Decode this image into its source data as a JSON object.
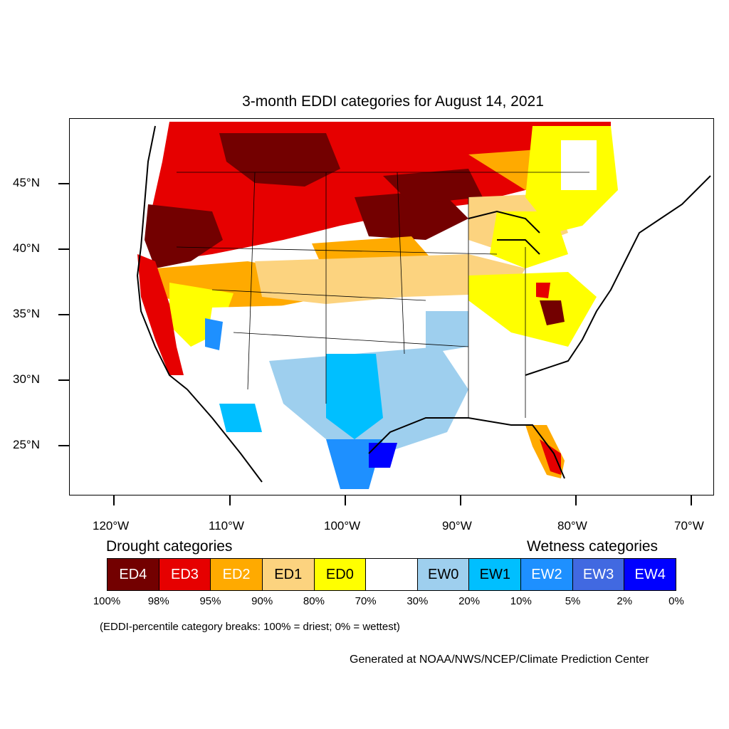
{
  "title": "3-month EDDI categories for August 14, 2021",
  "map": {
    "lat_labels": [
      "45°N",
      "40°N",
      "35°N",
      "30°N",
      "25°N"
    ],
    "lon_labels": [
      "120°W",
      "110°W",
      "100°W",
      "90°W",
      "80°W",
      "70°W"
    ]
  },
  "legend": {
    "drought_heading": "Drought categories",
    "wetness_heading": "Wetness categories",
    "categories": [
      {
        "label": "ED4",
        "color": "#730000",
        "text_color": "#ffffff"
      },
      {
        "label": "ED3",
        "color": "#e60000",
        "text_color": "#ffffff"
      },
      {
        "label": "ED2",
        "color": "#ffaa00",
        "text_color": "#ffffff"
      },
      {
        "label": "ED1",
        "color": "#fcd37f",
        "text_color": "#000000"
      },
      {
        "label": "ED0",
        "color": "#ffff00",
        "text_color": "#000000"
      },
      {
        "label": "",
        "color": "#ffffff",
        "text_color": "#000000"
      },
      {
        "label": "EW0",
        "color": "#9ecfee",
        "text_color": "#000000"
      },
      {
        "label": "EW1",
        "color": "#00bfff",
        "text_color": "#000000"
      },
      {
        "label": "EW2",
        "color": "#1e90ff",
        "text_color": "#ffffff"
      },
      {
        "label": "EW3",
        "color": "#4169e1",
        "text_color": "#ffffff"
      },
      {
        "label": "EW4",
        "color": "#0000ff",
        "text_color": "#ffffff"
      }
    ],
    "percent_breaks": [
      "100%",
      "98%",
      "95%",
      "90%",
      "80%",
      "70%",
      "30%",
      "20%",
      "10%",
      "5%",
      "2%",
      "0%"
    ]
  },
  "note": "(EDDI-percentile category breaks: 100% = driest; 0% = wettest)",
  "credit": "Generated at NOAA/NWS/NCEP/Climate Prediction Center"
}
